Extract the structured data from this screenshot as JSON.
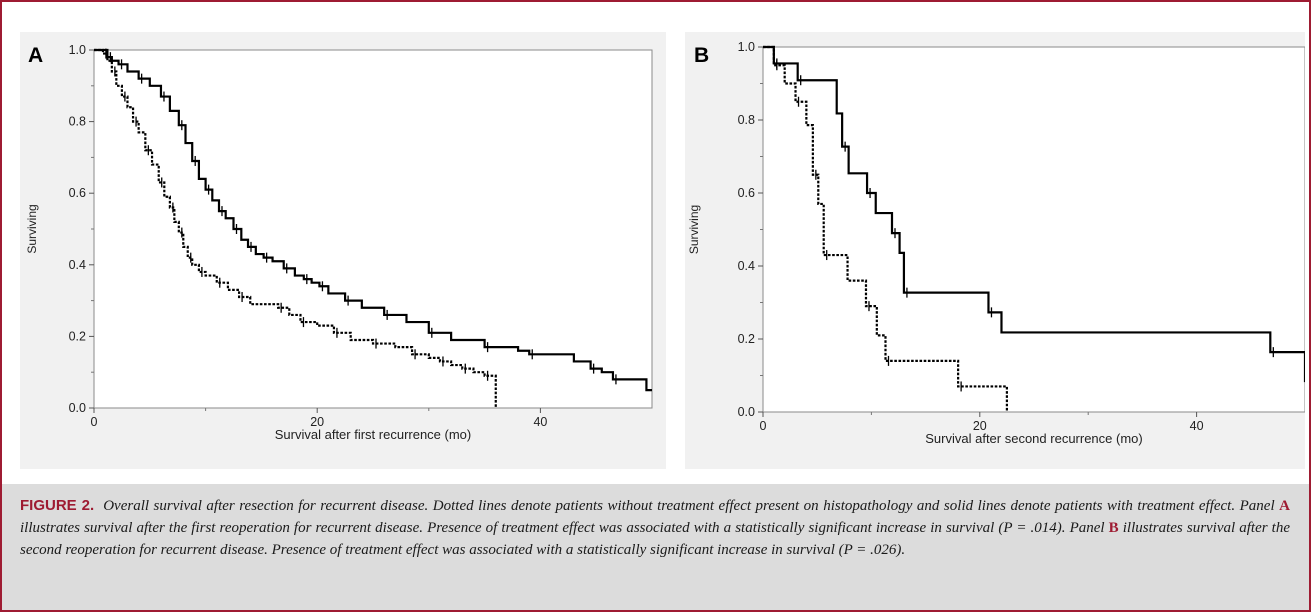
{
  "chart_data": [
    {
      "type": "line",
      "panel_label": "A",
      "xlabel": "Survival after first recurrence (mo)",
      "ylabel": "Surviving",
      "xlim": [
        0,
        50
      ],
      "ylim": [
        0,
        1.0
      ],
      "xticks": [
        0,
        20,
        40
      ],
      "xtick_labels": [
        "0",
        "20",
        "40"
      ],
      "yticks": [
        0.0,
        0.2,
        0.4,
        0.6,
        0.8,
        1.0
      ],
      "ytick_labels": [
        "0.0",
        "0.2",
        "0.4",
        "0.6",
        "0.8",
        "1.0"
      ],
      "grid": false,
      "series": [
        {
          "style": "solid",
          "x": [
            0,
            1.2,
            1.6,
            2.2,
            3.0,
            4.0,
            5.0,
            6.0,
            6.8,
            7.6,
            8.2,
            8.8,
            9.4,
            10.0,
            10.6,
            11.2,
            11.8,
            12.5,
            13.2,
            13.8,
            14.5,
            15.2,
            16.0,
            17.0,
            18.0,
            18.8,
            19.5,
            20.2,
            21.0,
            22.5,
            24.0,
            26.0,
            28.0,
            30.0,
            32.0,
            35.0,
            38.0,
            39.0,
            43.0,
            44.5,
            45.5,
            46.5,
            49.5,
            50.0
          ],
          "y": [
            1.0,
            0.98,
            0.97,
            0.96,
            0.94,
            0.92,
            0.9,
            0.87,
            0.83,
            0.79,
            0.74,
            0.69,
            0.64,
            0.61,
            0.58,
            0.55,
            0.53,
            0.5,
            0.47,
            0.45,
            0.43,
            0.42,
            0.41,
            0.39,
            0.37,
            0.36,
            0.35,
            0.34,
            0.32,
            0.3,
            0.28,
            0.26,
            0.24,
            0.21,
            0.19,
            0.17,
            0.16,
            0.15,
            0.13,
            0.11,
            0.1,
            0.08,
            0.05,
            0.05
          ]
        },
        {
          "style": "dotted",
          "x": [
            0,
            0.8,
            1.2,
            1.6,
            2.0,
            2.5,
            3.0,
            3.5,
            4.0,
            4.6,
            5.2,
            5.8,
            6.3,
            6.8,
            7.2,
            7.6,
            8.0,
            8.4,
            8.8,
            9.4,
            10.0,
            11.0,
            12.0,
            13.0,
            14.0,
            16.5,
            17.5,
            18.5,
            20.0,
            21.5,
            23.0,
            25.0,
            27.0,
            28.5,
            30.0,
            31.0,
            32.0,
            33.0,
            34.0,
            35.0,
            36.0,
            36.0
          ],
          "y": [
            1.0,
            0.99,
            0.97,
            0.94,
            0.9,
            0.87,
            0.84,
            0.8,
            0.77,
            0.72,
            0.68,
            0.63,
            0.59,
            0.56,
            0.52,
            0.49,
            0.45,
            0.42,
            0.4,
            0.38,
            0.37,
            0.35,
            0.33,
            0.31,
            0.29,
            0.28,
            0.26,
            0.24,
            0.23,
            0.21,
            0.19,
            0.18,
            0.17,
            0.15,
            0.14,
            0.13,
            0.12,
            0.11,
            0.1,
            0.09,
            0.09,
            0.0
          ]
        }
      ]
    },
    {
      "type": "line",
      "panel_label": "B",
      "xlabel": "Survival after second recurrence (mo)",
      "ylabel": "Surviving",
      "xlim": [
        0,
        50
      ],
      "ylim": [
        0,
        1.0
      ],
      "xticks": [
        0,
        20,
        40
      ],
      "xtick_labels": [
        "0",
        "20",
        "40"
      ],
      "yticks": [
        0.0,
        0.2,
        0.4,
        0.6,
        0.8,
        1.0
      ],
      "ytick_labels": [
        "0.0",
        "0.2",
        "0.4",
        "0.6",
        "0.8",
        "1.0"
      ],
      "grid": false,
      "series": [
        {
          "style": "solid",
          "x": [
            0,
            1.0,
            1.8,
            3.2,
            6.8,
            7.3,
            7.9,
            9.6,
            10.4,
            11.9,
            12.6,
            13.0,
            19.5,
            20.8,
            22.0,
            46.8,
            50.0
          ],
          "y": [
            1.0,
            0.955,
            0.955,
            0.909,
            0.818,
            0.727,
            0.654,
            0.6,
            0.545,
            0.49,
            0.436,
            0.327,
            0.327,
            0.273,
            0.218,
            0.164,
            0.082
          ],
          "y_final_value": 0.082
        },
        {
          "style": "dotted",
          "x": [
            0,
            1.0,
            2.0,
            3.0,
            4.0,
            4.6,
            5.1,
            5.6,
            7.8,
            9.5,
            10.5,
            11.3,
            11.8,
            18.0,
            22.5
          ],
          "y": [
            1.0,
            0.95,
            0.9,
            0.85,
            0.786,
            0.65,
            0.57,
            0.43,
            0.36,
            0.29,
            0.21,
            0.14,
            0.14,
            0.07,
            0.0
          ]
        }
      ]
    }
  ],
  "caption": {
    "figure_label": "FIGURE 2.",
    "part1": "Overall survival after resection for recurrent disease. Dotted lines denote patients without treatment effect present on histopathology and solid lines denote patients with treatment effect. Panel ",
    "ref_a": "A",
    "part2": " illustrates survival after the first reoperation for recurrent disease. Presence of treatment effect was associated with a statistically significant increase in survival (P = .014). Panel ",
    "ref_b": "B",
    "part3": " illustrates survival after the second reoperation for recurrent disease. Presence of treatment effect was associated with a statistically significant increase in survival (P = .026)."
  },
  "colors": {
    "frame": "#9e1b32",
    "panel_background": "#f1f1f1",
    "caption_background": "#dcdcdc",
    "lines": "#000000"
  }
}
